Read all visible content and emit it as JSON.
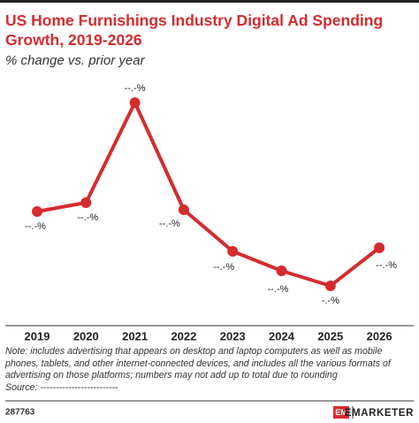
{
  "chart_data": {
    "type": "line",
    "title": "US Home Furnishings Industry Digital Ad Spending Growth, 2019-2026",
    "subtitle": "% change vs. prior year",
    "categories": [
      "2019",
      "2020",
      "2021",
      "2022",
      "2023",
      "2024",
      "2025",
      "2026"
    ],
    "values": [
      6.1,
      7.1,
      18.4,
      6.3,
      1.6,
      -0.6,
      -2.3,
      2.0
    ],
    "value_labels": [
      "--.-%",
      "--.-%",
      "--.-%",
      "--.-%",
      "--.-%",
      "--.-%",
      "-.-%",
      "--.-%"
    ],
    "color": "#d62b2f",
    "note": "Note: includes advertising that appears on desktop and laptop computers as well as mobile phones, tablets, and other internet-connected devices, and includes all the various formats of advertising on those platforms; numbers may not add up to total due to rounding",
    "source": "Source: -------------------------",
    "chart_id": "287763",
    "brand": "EMARKETER"
  }
}
